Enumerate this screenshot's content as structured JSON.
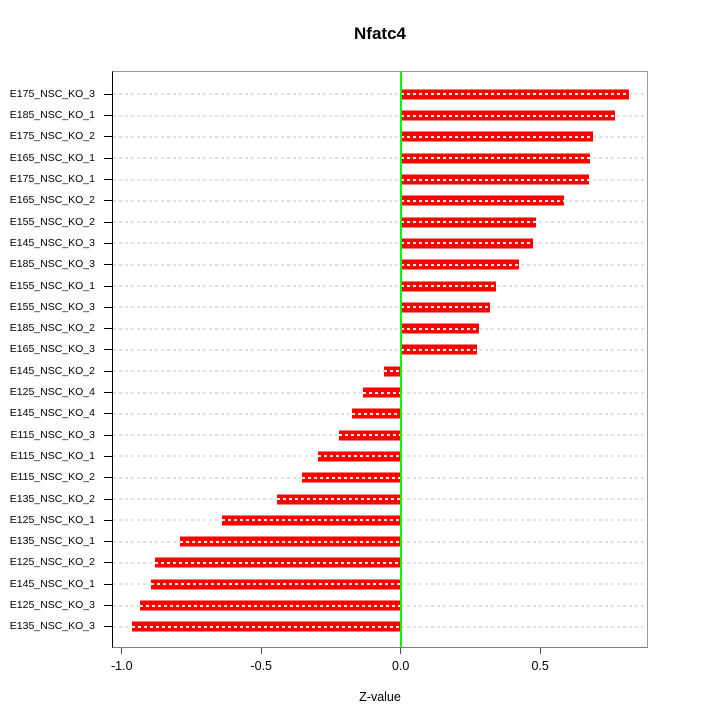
{
  "chart_data": {
    "type": "bar",
    "orientation": "horizontal",
    "title": "Nfatc4",
    "xlabel": "Z-value",
    "xlim": [
      -1.04,
      0.88
    ],
    "xticks": [
      -1.0,
      -0.5,
      0.0,
      0.5
    ],
    "xtick_labels": [
      "-1.0",
      "-0.5",
      "0.0",
      "0.5"
    ],
    "grid": "dashed horizontal line at each category, full plot width",
    "zero_reference_line": 0.0,
    "legend": "none",
    "colors": {
      "bar": "#ff0000",
      "zero_line": "#00ff00",
      "grid": "#e2e2e2",
      "box_border": "#9b9b9b",
      "axis_text": "#000000"
    },
    "bars": [
      {
        "label": "E175_NSC_KO_3",
        "value": 0.82
      },
      {
        "label": "E185_NSC_KO_1",
        "value": 0.77
      },
      {
        "label": "E175_NSC_KO_2",
        "value": 0.69
      },
      {
        "label": "E165_NSC_KO_1",
        "value": 0.68
      },
      {
        "label": "E175_NSC_KO_1",
        "value": 0.675
      },
      {
        "label": "E165_NSC_KO_2",
        "value": 0.585
      },
      {
        "label": "E155_NSC_KO_2",
        "value": 0.485
      },
      {
        "label": "E145_NSC_KO_3",
        "value": 0.475
      },
      {
        "label": "E185_NSC_KO_3",
        "value": 0.425
      },
      {
        "label": "E155_NSC_KO_1",
        "value": 0.34
      },
      {
        "label": "E155_NSC_KO_3",
        "value": 0.32
      },
      {
        "label": "E185_NSC_KO_2",
        "value": 0.28
      },
      {
        "label": "E165_NSC_KO_3",
        "value": 0.275
      },
      {
        "label": "E145_NSC_KO_2",
        "value": -0.06
      },
      {
        "label": "E125_NSC_KO_4",
        "value": -0.135
      },
      {
        "label": "E145_NSC_KO_4",
        "value": -0.175
      },
      {
        "label": "E115_NSC_KO_3",
        "value": -0.22
      },
      {
        "label": "E115_NSC_KO_1",
        "value": -0.295
      },
      {
        "label": "E115_NSC_KO_2",
        "value": -0.355
      },
      {
        "label": "E135_NSC_KO_2",
        "value": -0.445
      },
      {
        "label": "E125_NSC_KO_1",
        "value": -0.64
      },
      {
        "label": "E135_NSC_KO_1",
        "value": -0.79
      },
      {
        "label": "E125_NSC_KO_2",
        "value": -0.88
      },
      {
        "label": "E145_NSC_KO_1",
        "value": -0.895
      },
      {
        "label": "E125_NSC_KO_3",
        "value": -0.935
      },
      {
        "label": "E135_NSC_KO_3",
        "value": -0.965
      }
    ]
  }
}
